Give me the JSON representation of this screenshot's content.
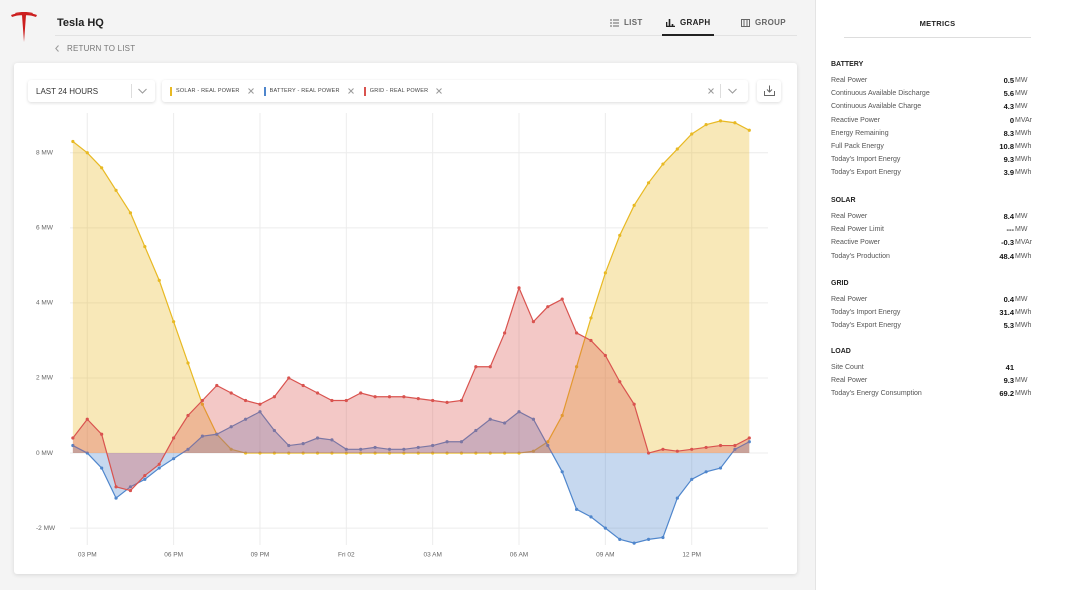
{
  "header": {
    "title": "Tesla HQ",
    "tabs": [
      "LIST",
      "GRAPH",
      "GROUP"
    ],
    "active_tab": 1,
    "back": "RETURN TO LIST"
  },
  "filter": "LAST 24 HOURS",
  "chart_data": {
    "type": "area",
    "x": [
      14.5,
      15,
      15.5,
      16,
      16.5,
      17,
      17.5,
      18,
      18.5,
      19,
      19.5,
      20,
      20.5,
      21,
      21.5,
      22,
      22.5,
      23,
      23.5,
      24,
      24.5,
      25,
      25.5,
      26,
      26.5,
      27,
      27.5,
      28,
      28.5,
      29,
      29.5,
      30,
      30.5,
      31,
      31.5,
      32,
      32.5,
      33,
      33.5,
      34,
      34.5,
      35,
      35.5,
      36,
      36.5,
      37,
      37.5,
      38
    ],
    "series": [
      {
        "name": "SOLAR - REAL POWER",
        "color": "#e8b923",
        "values": [
          8.3,
          8.0,
          7.6,
          7.0,
          6.4,
          5.5,
          4.6,
          3.5,
          2.4,
          1.3,
          0.5,
          0.1,
          0,
          0,
          0,
          0,
          0,
          0,
          0,
          0,
          0,
          0,
          0,
          0,
          0,
          0,
          0,
          0,
          0,
          0,
          0,
          0,
          0.05,
          0.3,
          1.0,
          2.3,
          3.6,
          4.8,
          5.8,
          6.6,
          7.2,
          7.7,
          8.1,
          8.5,
          8.75,
          8.85,
          8.8,
          8.6
        ]
      },
      {
        "name": "BATTERY - REAL POWER",
        "color": "#4f86cc",
        "values": [
          0.2,
          0.0,
          -0.4,
          -1.2,
          -0.9,
          -0.7,
          -0.4,
          -0.15,
          0.1,
          0.45,
          0.5,
          0.7,
          0.9,
          1.1,
          0.6,
          0.2,
          0.25,
          0.4,
          0.35,
          0.1,
          0.1,
          0.15,
          0.1,
          0.1,
          0.15,
          0.2,
          0.3,
          0.3,
          0.6,
          0.9,
          0.8,
          1.1,
          0.9,
          0.2,
          -0.5,
          -1.5,
          -1.7,
          -2.0,
          -2.3,
          -2.4,
          -2.3,
          -2.25,
          -1.2,
          -0.7,
          -0.5,
          -0.4,
          0.1,
          0.3
        ]
      },
      {
        "name": "GRID - REAL POWER",
        "color": "#d9534f",
        "values": [
          0.4,
          0.9,
          0.5,
          -0.9,
          -1.0,
          -0.6,
          -0.3,
          0.4,
          1.0,
          1.4,
          1.8,
          1.6,
          1.4,
          1.3,
          1.5,
          2.0,
          1.8,
          1.6,
          1.4,
          1.4,
          1.6,
          1.5,
          1.5,
          1.5,
          1.45,
          1.4,
          1.35,
          1.4,
          2.3,
          2.3,
          3.2,
          4.4,
          3.5,
          3.9,
          4.1,
          3.2,
          3.0,
          2.6,
          1.9,
          1.3,
          0.0,
          0.1,
          0.05,
          0.1,
          0.15,
          0.2,
          0.2,
          0.4
        ]
      }
    ],
    "xlim": [
      14.4,
      38.65
    ],
    "xticks": [
      {
        "value": 15,
        "label": "03 PM"
      },
      {
        "value": 18,
        "label": "06 PM"
      },
      {
        "value": 21,
        "label": "09 PM"
      },
      {
        "value": 24,
        "label": "Fri 02"
      },
      {
        "value": 27,
        "label": "03 AM"
      },
      {
        "value": 30,
        "label": "06 AM"
      },
      {
        "value": 33,
        "label": "09 AM"
      },
      {
        "value": 36,
        "label": "12 PM"
      }
    ],
    "ylim": [
      -2.45,
      8.9
    ],
    "yticks": [
      {
        "value": -2,
        "label": "-2 MW"
      },
      {
        "value": 0,
        "label": "0 MW"
      },
      {
        "value": 2,
        "label": "2 MW"
      },
      {
        "value": 4,
        "label": "4 MW"
      },
      {
        "value": 6,
        "label": "6 MW"
      },
      {
        "value": 8,
        "label": "8 MW"
      }
    ],
    "grid": true
  },
  "metrics": {
    "title": "METRICS",
    "sections": [
      {
        "title": "BATTERY",
        "rows": [
          {
            "label": "Real Power",
            "value": "0.5",
            "unit": "MW"
          },
          {
            "label": "Continuous Available Discharge",
            "value": "5.6",
            "unit": "MW"
          },
          {
            "label": "Continuous Available Charge",
            "value": "4.3",
            "unit": "MW"
          },
          {
            "label": "Reactive Power",
            "value": "0",
            "unit": "MVAr"
          },
          {
            "label": "Energy Remaining",
            "value": "8.3",
            "unit": "MWh"
          },
          {
            "label": "Full Pack Energy",
            "value": "10.8",
            "unit": "MWh"
          },
          {
            "label": "Today's Import Energy",
            "value": "9.3",
            "unit": "MWh"
          },
          {
            "label": "Today's Export Energy",
            "value": "3.9",
            "unit": "MWh"
          }
        ]
      },
      {
        "title": "SOLAR",
        "rows": [
          {
            "label": "Real Power",
            "value": "8.4",
            "unit": "MW"
          },
          {
            "label": "Real Power Limit",
            "value": "---",
            "unit": "MW"
          },
          {
            "label": "Reactive Power",
            "value": "-0.3",
            "unit": "MVAr"
          },
          {
            "label": "Today's Production",
            "value": "48.4",
            "unit": "MWh"
          }
        ]
      },
      {
        "title": "GRID",
        "rows": [
          {
            "label": "Real Power",
            "value": "0.4",
            "unit": "MW"
          },
          {
            "label": "Today's Import Energy",
            "value": "31.4",
            "unit": "MWh"
          },
          {
            "label": "Today's Export Energy",
            "value": "5.3",
            "unit": "MWh"
          }
        ]
      },
      {
        "title": "LOAD",
        "rows": [
          {
            "label": "Site Count",
            "value": "41"
          },
          {
            "label": "Real Power",
            "value": "9.3",
            "unit": "MW"
          },
          {
            "label": "Today's Energy Consumption",
            "value": "69.2",
            "unit": "MWh"
          }
        ]
      }
    ]
  }
}
